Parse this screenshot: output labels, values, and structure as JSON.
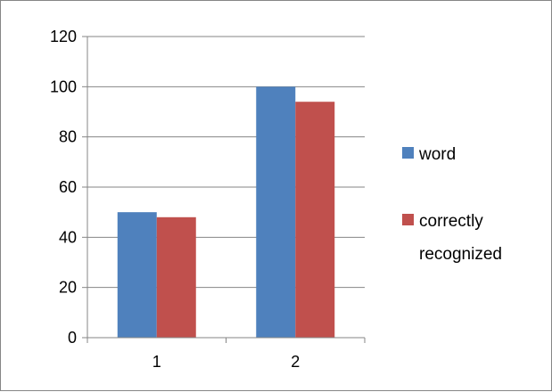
{
  "chart_data": {
    "type": "bar",
    "categories": [
      "1",
      "2"
    ],
    "series": [
      {
        "name": "word",
        "values": [
          50,
          100
        ],
        "color": "#4f81bd"
      },
      {
        "name": "correctly recognized",
        "values": [
          48,
          94
        ],
        "color": "#c0504d"
      }
    ],
    "ylim": [
      0,
      120
    ],
    "yticks": [
      "0",
      "20",
      "40",
      "60",
      "80",
      "100",
      "120"
    ],
    "grid": true,
    "legend_position": "right",
    "legend": {
      "word": "word",
      "correctly_line1": "correctly",
      "correctly_line2": "recognized"
    },
    "colors": {
      "axis": "#868686",
      "grid": "#868686"
    }
  }
}
